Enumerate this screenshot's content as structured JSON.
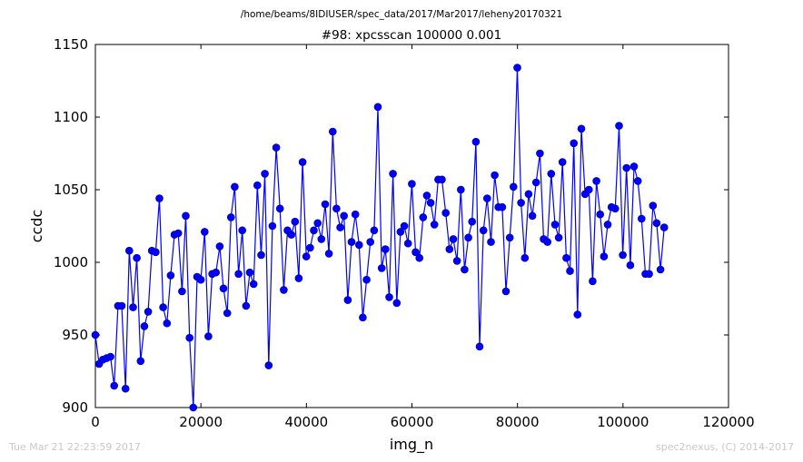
{
  "footer": {
    "timestamp": "Tue Mar 21 22:23:59 2017",
    "credit": "spec2nexus, (C) 2014-2017"
  },
  "chart_data": {
    "type": "line",
    "suptitle": "/home/beams/8IDIUSER/spec_data/2017/Mar2017/leheny20170321",
    "title": "#98: xpcsscan 100000 0.001",
    "xlabel": "img_n",
    "ylabel": "ccdc",
    "xlim": [
      0,
      120000
    ],
    "ylim": [
      900,
      1150
    ],
    "xticks": [
      "0",
      "20000",
      "40000",
      "60000",
      "80000",
      "100000",
      "120000"
    ],
    "yticks": [
      "900",
      "950",
      "1000",
      "1050",
      "1100",
      "1150"
    ],
    "grid": false,
    "series_color": "#0000ff",
    "marker": "circle",
    "x_step": 714,
    "x_start": 0,
    "series": [
      {
        "values": [
          950,
          930,
          933,
          934,
          935,
          915,
          970,
          970,
          913,
          1008,
          969,
          1003,
          932,
          956,
          966,
          1008,
          1007,
          1044,
          969,
          958,
          991,
          1019,
          1020,
          980,
          1032,
          948,
          900,
          990,
          988,
          1021,
          949,
          992,
          993,
          1011,
          982,
          965,
          1031,
          1052,
          992,
          1022,
          970,
          993,
          985,
          1053,
          1005,
          1061,
          929,
          1025,
          1079,
          1037,
          981,
          1022,
          1019,
          1028,
          989,
          1069,
          1004,
          1010,
          1022,
          1027,
          1016,
          1040,
          1006,
          1090,
          1037,
          1024,
          1032,
          974,
          1014,
          1033,
          1012,
          962,
          988,
          1014,
          1022,
          1107,
          996,
          1009,
          976,
          1061,
          972,
          1021,
          1025,
          1013,
          1054,
          1007,
          1003,
          1031,
          1046,
          1041,
          1026,
          1057,
          1057,
          1034,
          1009,
          1016,
          1001,
          1050,
          995,
          1017,
          1028,
          1083,
          942,
          1022,
          1044,
          1014,
          1060,
          1038,
          1038,
          980,
          1017,
          1052,
          1134,
          1041,
          1003,
          1047,
          1032,
          1055,
          1075,
          1016,
          1014,
          1061,
          1026,
          1017,
          1069,
          1003,
          994,
          1082,
          964,
          1092,
          1047,
          1050,
          987,
          1056,
          1033,
          1004,
          1026,
          1038,
          1037,
          1094,
          1005,
          1065,
          998,
          1066,
          1056,
          1030,
          992,
          992,
          1039,
          1027,
          995,
          1024
        ]
      }
    ]
  }
}
